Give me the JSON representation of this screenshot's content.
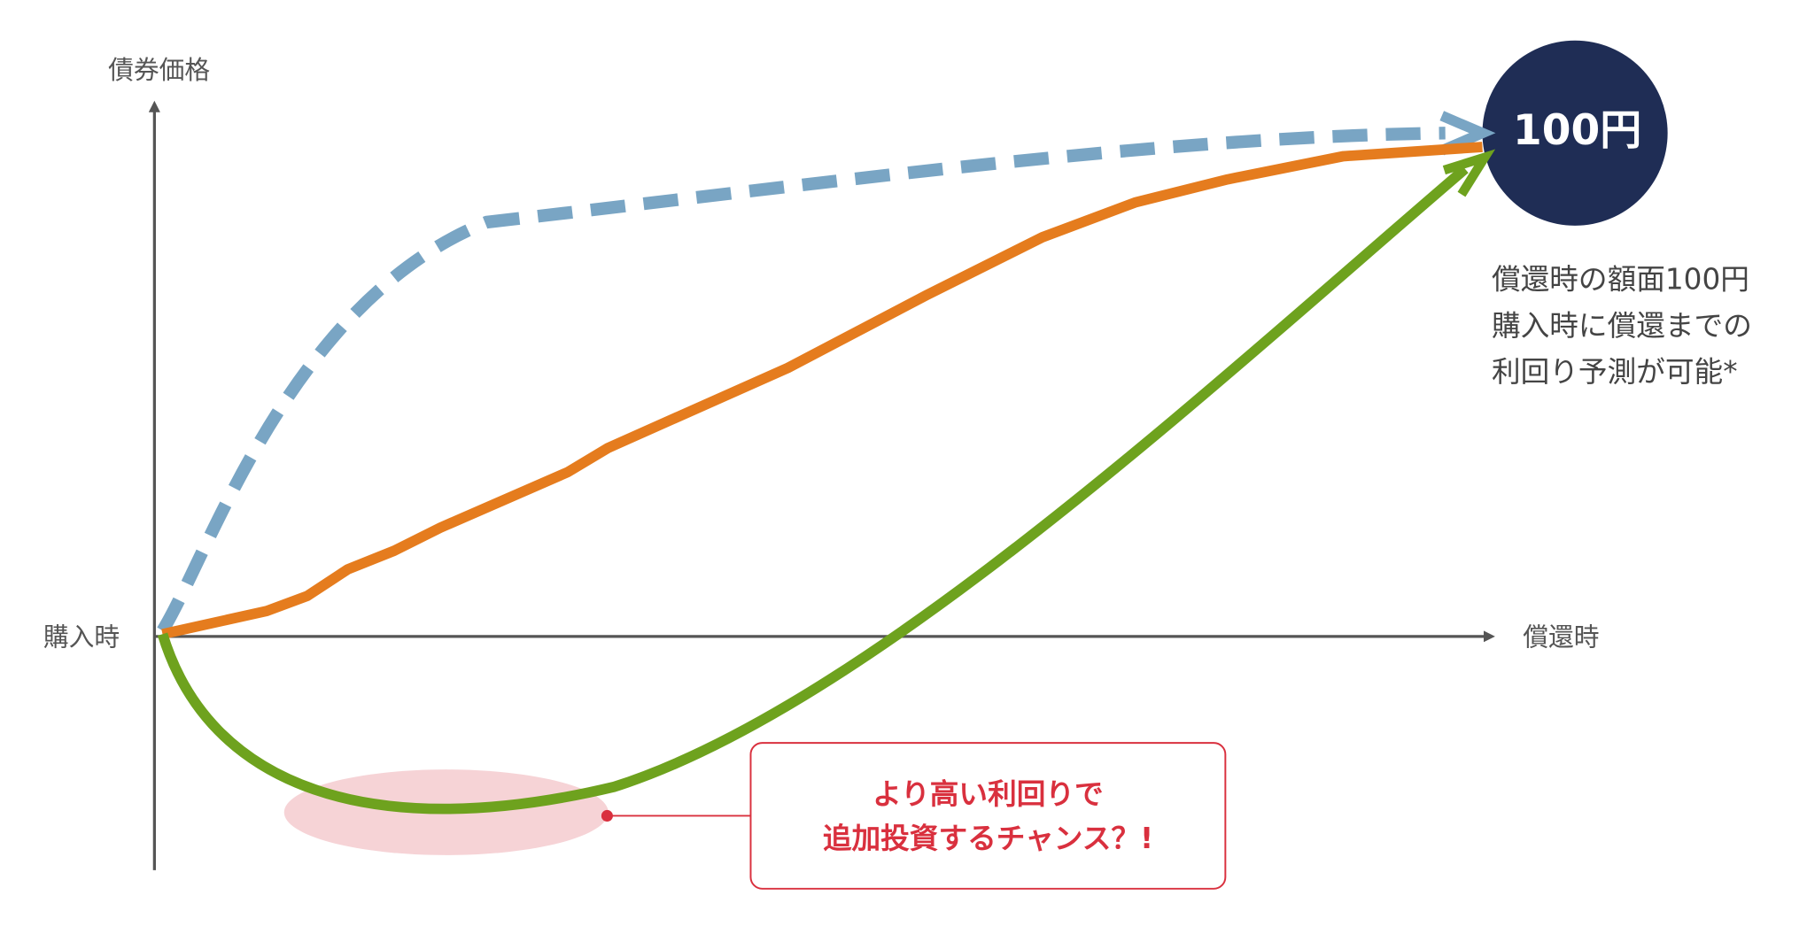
{
  "axes": {
    "y_label": "債券価格",
    "origin_label": "購入時",
    "x_end_label": "償還時"
  },
  "target": {
    "label": "100円",
    "note": [
      "償還時の額面100円",
      "購入時に償還までの",
      "利回り予測が可能*"
    ]
  },
  "callout": {
    "lines": [
      "より高い利回りで",
      "追加投資するチャンス？!"
    ]
  }
}
